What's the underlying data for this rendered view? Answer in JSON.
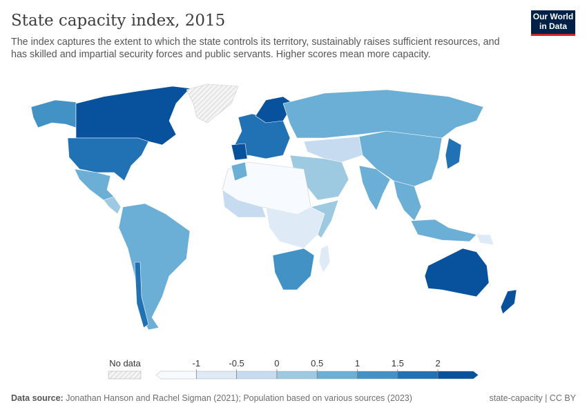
{
  "header": {
    "title": "State capacity index, 2015",
    "subtitle": "The index captures the extent to which the state controls its territory, sustainably raises sufficient resources, and has skilled and impartial security forces and public servants. Higher scores mean more capacity.",
    "logo_text": "Our World in Data"
  },
  "legend": {
    "no_data_label": "No data",
    "ticks": [
      "-1",
      "-0.5",
      "0",
      "0.5",
      "1",
      "1.5",
      "2"
    ],
    "colors": [
      "#f7fbff",
      "#deebf7",
      "#c6dbef",
      "#9ecae1",
      "#6baed6",
      "#4292c6",
      "#2171b5",
      "#08519c"
    ],
    "no_data_color": "#eeeeee"
  },
  "footer": {
    "source_label": "Data source:",
    "source_text": " Jonathan Hanson and Rachel Sigman (2021); Population based on various sources (2023)",
    "license": "state-capacity | CC BY"
  }
}
